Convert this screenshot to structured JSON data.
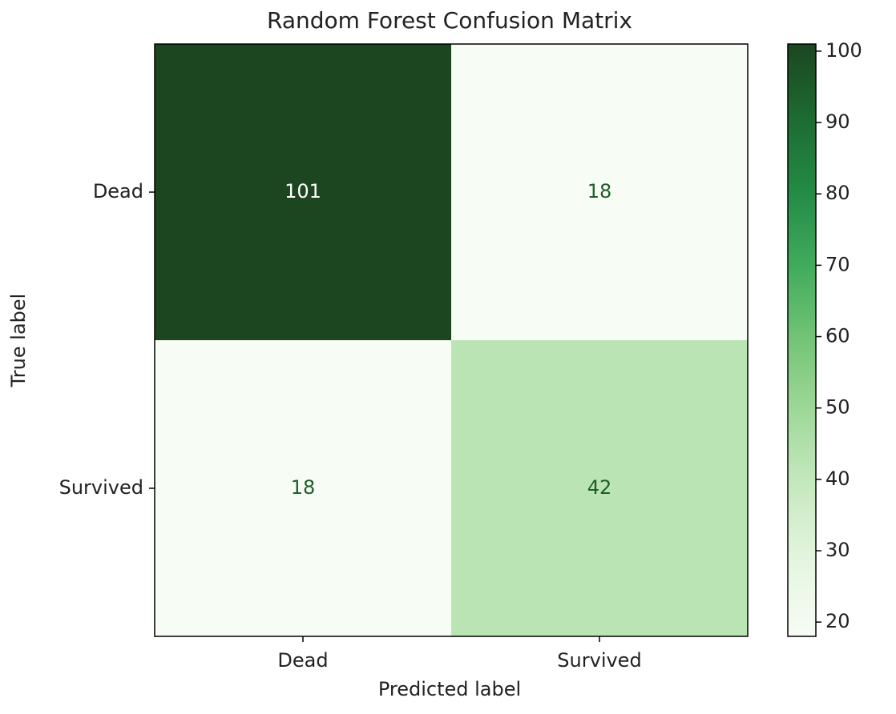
{
  "chart_data": {
    "type": "heatmap",
    "title": "Random Forest Confusion Matrix",
    "xlabel": "Predicted label",
    "ylabel": "True label",
    "x_categories": [
      "Dead",
      "Survived"
    ],
    "y_categories": [
      "Dead",
      "Survived"
    ],
    "values": [
      [
        101,
        18
      ],
      [
        18,
        42
      ]
    ],
    "colormap": "Greens",
    "clim": [
      18,
      101
    ],
    "cticks": [
      20,
      30,
      40,
      50,
      60,
      70,
      80,
      90,
      100
    ]
  }
}
